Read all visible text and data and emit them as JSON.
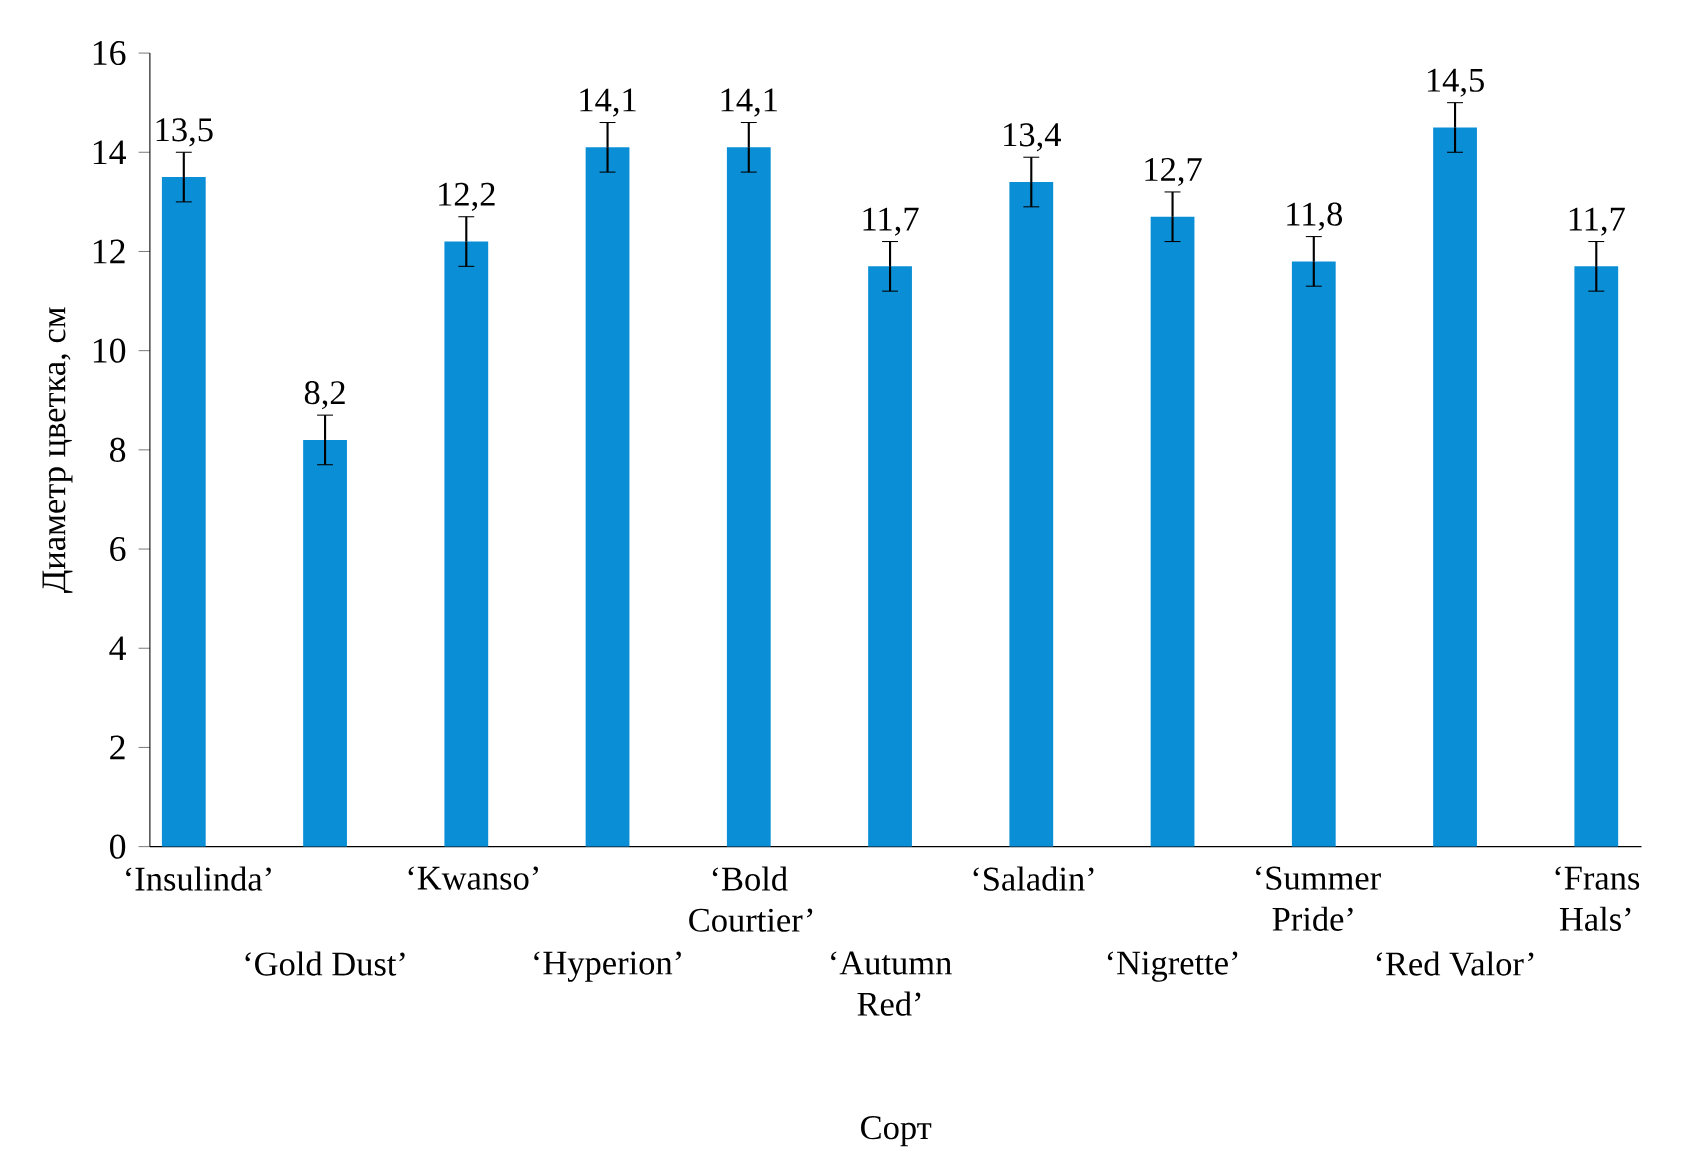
{
  "chart_data": {
    "type": "bar",
    "xlabel": "Сорт",
    "ylabel": "Диаметр цветка, см",
    "categories": [
      "‘Insulinda’",
      "‘Gold Dust’",
      "‘Kwanso’",
      "‘Hyperion’",
      "‘Bold Courtier’",
      "‘Autumn Red’",
      "‘Saladin’",
      "‘Nigrette’",
      "‘Summer Pride’",
      "‘Red Valor’",
      "‘Frans Hals’"
    ],
    "values": [
      13.5,
      8.2,
      12.2,
      14.1,
      14.1,
      11.7,
      13.4,
      12.7,
      11.8,
      14.5,
      11.7
    ],
    "errors": [
      0.5,
      0.5,
      0.5,
      0.5,
      0.5,
      0.5,
      0.5,
      0.5,
      0.5,
      0.5,
      0.5
    ],
    "value_labels": [
      "13,5",
      "8,2",
      "12,2",
      "14,1",
      "14,1",
      "11,7",
      "13,4",
      "12,7",
      "11,8",
      "14,5",
      "11,7"
    ],
    "color": "#0a8fd6",
    "ylim": [
      0,
      16
    ],
    "yticks": [
      0,
      2,
      4,
      6,
      8,
      10,
      12,
      14,
      16
    ],
    "grid": false
  }
}
